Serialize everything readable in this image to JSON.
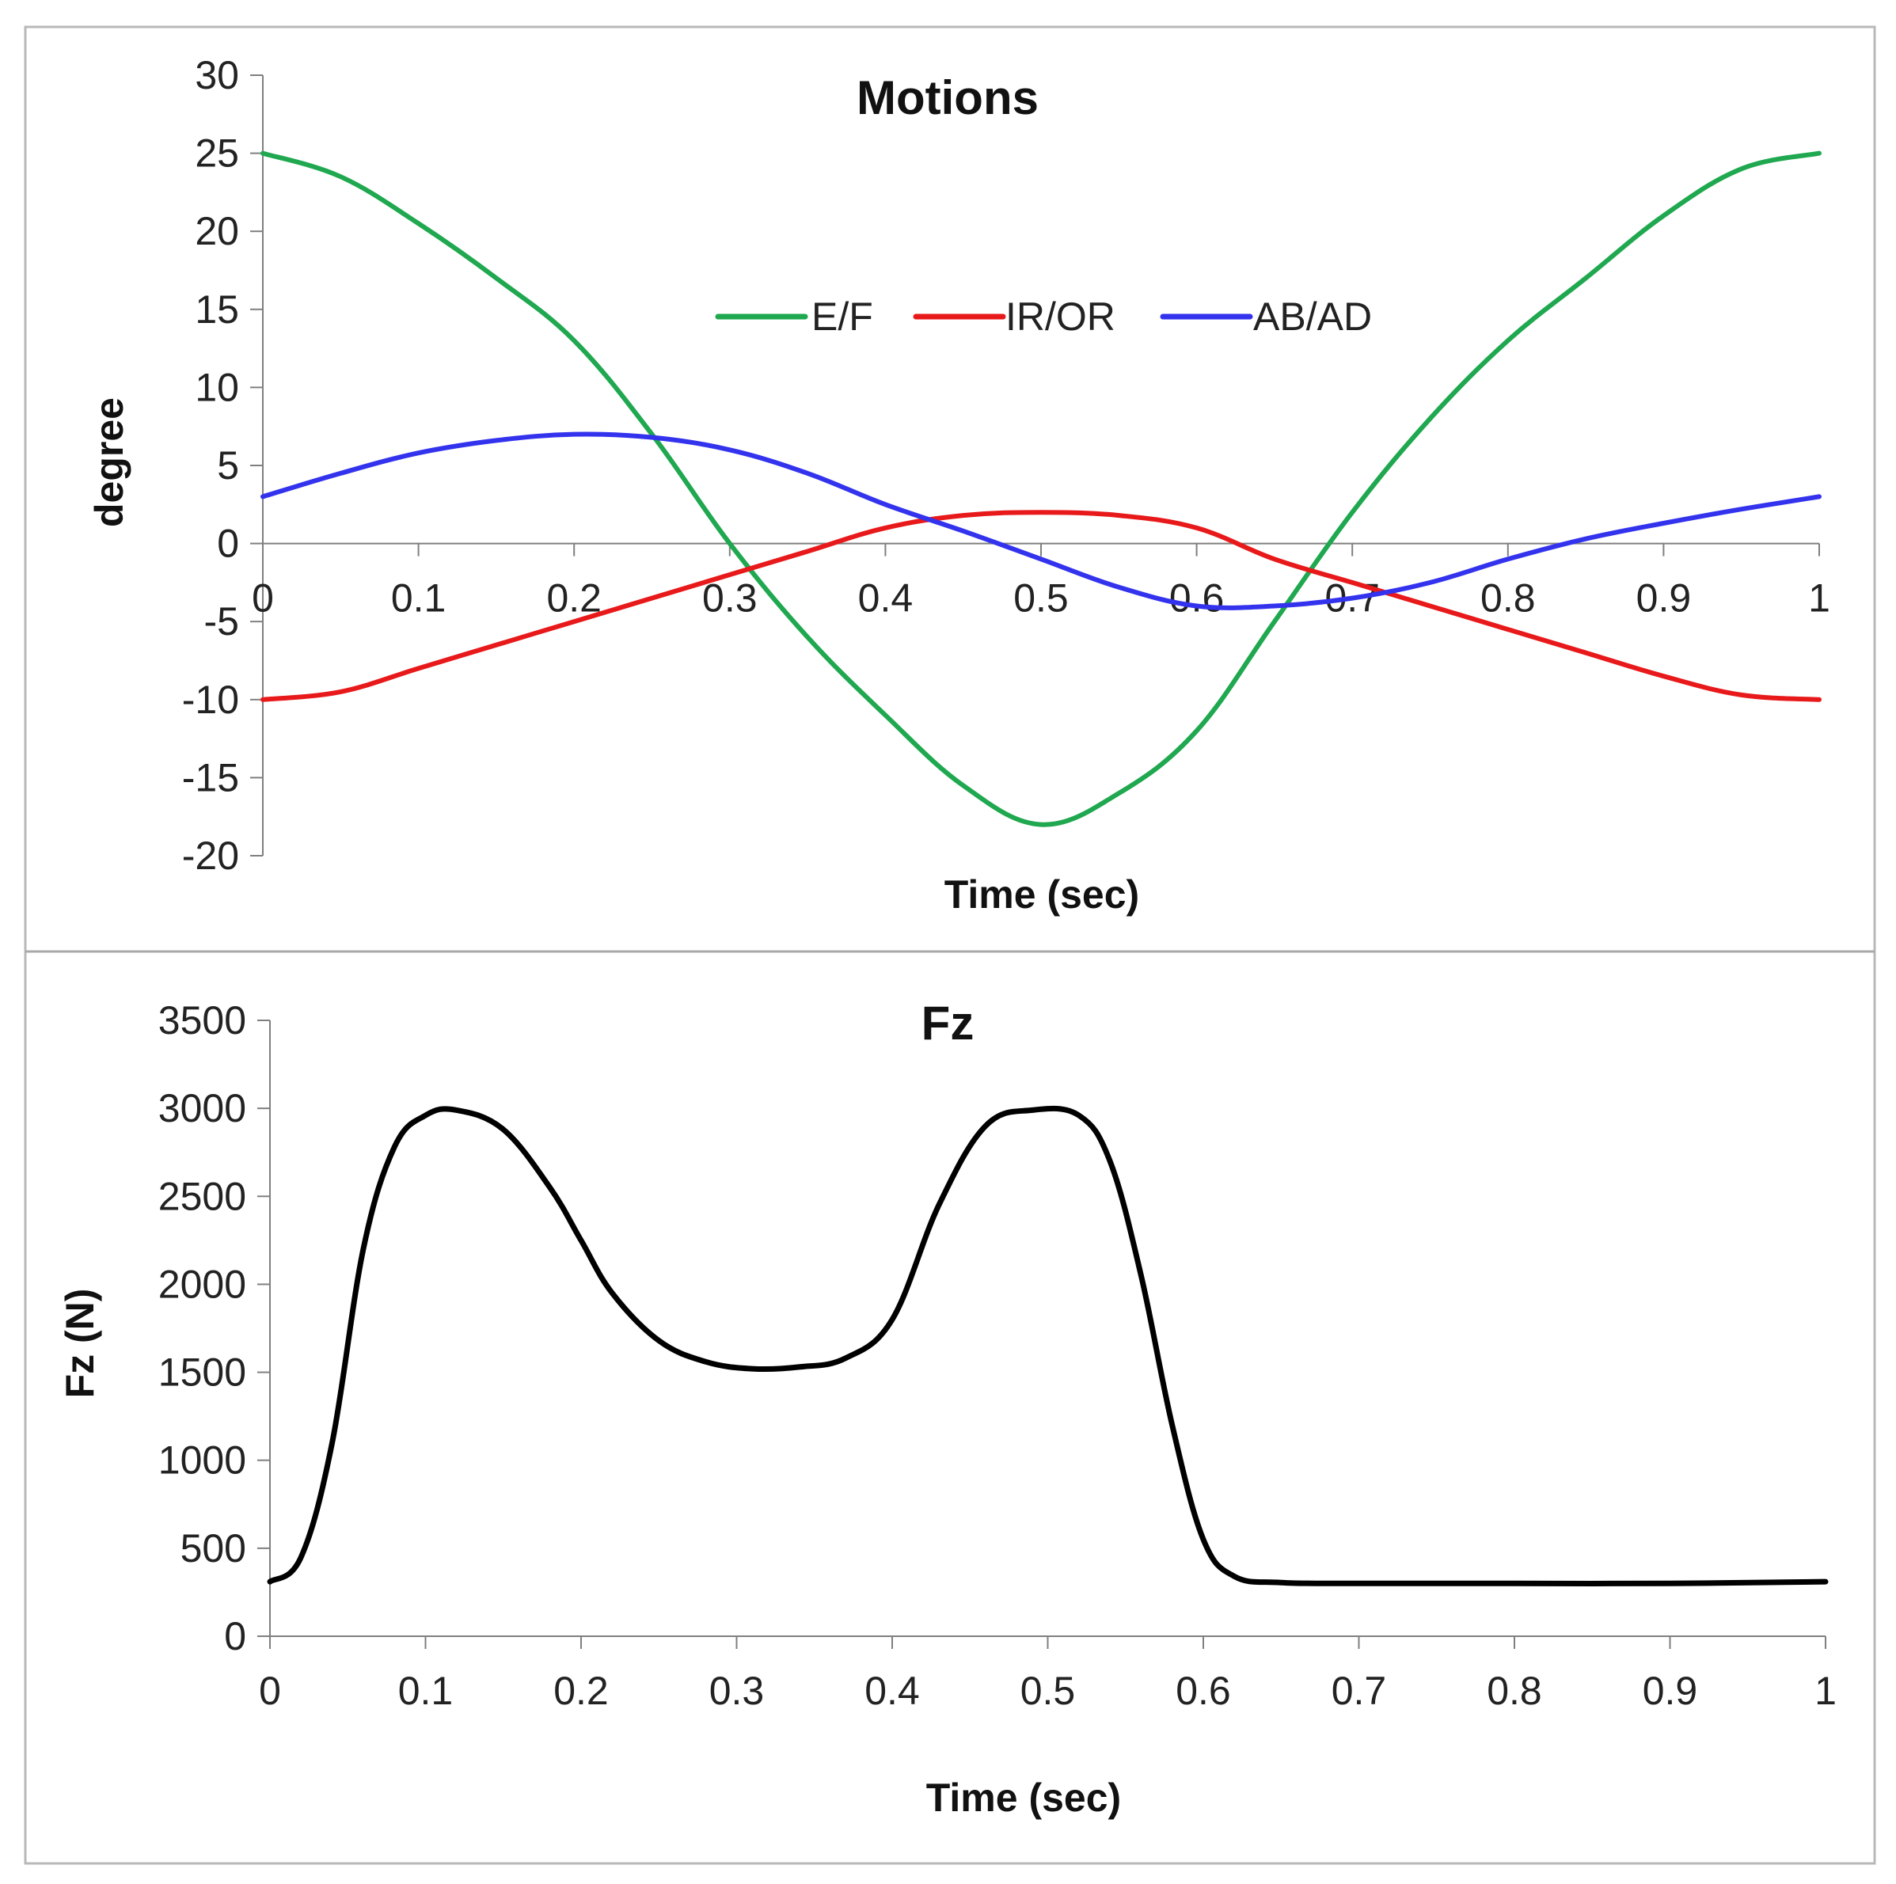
{
  "chart_data": [
    {
      "type": "line",
      "title": "Motions",
      "xlabel": "Time (sec)",
      "ylabel": "degree",
      "xlim": [
        0,
        1
      ],
      "ylim": [
        -20,
        30
      ],
      "xticks": [
        "0",
        "0.1",
        "0.2",
        "0.3",
        "0.4",
        "0.5",
        "0.6",
        "0.7",
        "0.8",
        "0.9",
        "1"
      ],
      "yticks": [
        "30",
        "25",
        "20",
        "15",
        "10",
        "5",
        "0",
        "-5",
        "-10",
        "-15",
        "-20"
      ],
      "grid": false,
      "legend": "center-top",
      "x": [
        0,
        0.05,
        0.1,
        0.15,
        0.2,
        0.25,
        0.3,
        0.35,
        0.4,
        0.45,
        0.5,
        0.55,
        0.6,
        0.65,
        0.7,
        0.75,
        0.8,
        0.85,
        0.9,
        0.95,
        1
      ],
      "series": [
        {
          "name": "E/F",
          "color": "#1fa84f",
          "values": [
            25,
            23.5,
            20.5,
            17,
            13,
            7,
            0,
            -6,
            -11,
            -15.5,
            -18,
            -16,
            -12,
            -5,
            2,
            8,
            13,
            17,
            21,
            24,
            25
          ]
        },
        {
          "name": "IR/OR",
          "color": "#e8191a",
          "values": [
            -10,
            -9.5,
            -8,
            -6.5,
            -5,
            -3.5,
            -2,
            -0.5,
            1,
            1.8,
            2,
            1.8,
            1,
            -1,
            -2.5,
            -4,
            -5.5,
            -7,
            -8.5,
            -9.7,
            -10
          ]
        },
        {
          "name": "AB/AD",
          "color": "#3333ee",
          "values": [
            3,
            4.5,
            5.8,
            6.6,
            7,
            6.8,
            6,
            4.5,
            2.5,
            0.8,
            -1,
            -2.8,
            -4,
            -4,
            -3.5,
            -2.5,
            -1,
            0.3,
            1.3,
            2.2,
            3
          ]
        }
      ]
    },
    {
      "type": "line",
      "title": "Fz",
      "xlabel": "Time (sec)",
      "ylabel": "Fz (N)",
      "xlim": [
        0,
        1
      ],
      "ylim": [
        0,
        3500
      ],
      "xticks": [
        "0",
        "0.1",
        "0.2",
        "0.3",
        "0.4",
        "0.5",
        "0.6",
        "0.7",
        "0.8",
        "0.9",
        "1"
      ],
      "yticks": [
        "3500",
        "3000",
        "2500",
        "2000",
        "1500",
        "1000",
        "500",
        "0"
      ],
      "grid": false,
      "x": [
        0,
        0.02,
        0.04,
        0.06,
        0.08,
        0.1,
        0.12,
        0.15,
        0.18,
        0.2,
        0.22,
        0.25,
        0.28,
        0.31,
        0.34,
        0.37,
        0.4,
        0.43,
        0.46,
        0.49,
        0.52,
        0.54,
        0.56,
        0.58,
        0.6,
        0.62,
        0.65,
        0.7,
        0.8,
        0.9,
        1
      ],
      "series": [
        {
          "color": "#000000",
          "values": [
            310,
            450,
            1100,
            2200,
            2780,
            2960,
            2990,
            2880,
            2550,
            2250,
            1950,
            1680,
            1560,
            1520,
            1530,
            1580,
            1800,
            2450,
            2900,
            2990,
            2960,
            2700,
            2050,
            1200,
            550,
            340,
            305,
            300,
            300,
            300,
            310
          ]
        }
      ]
    }
  ]
}
